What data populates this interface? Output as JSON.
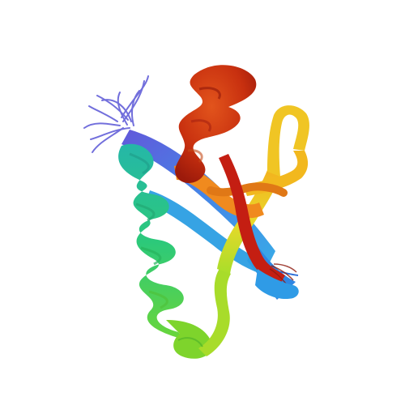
{
  "image": {
    "subject": "protein-structure-ensemble",
    "style": "ribbon-cartoon-rainbow",
    "background": "#ffffff",
    "colors": {
      "nterm_blue": "#4b50d6",
      "blue": "#3f78e8",
      "cyan": "#2fb0d8",
      "teal": "#23c2a0",
      "green": "#2fcf62",
      "yellowgreen": "#8fdc2a",
      "yellow": "#e6d62a",
      "orange": "#f28a1c",
      "darkorange": "#d9561a",
      "red": "#c21c12"
    }
  }
}
